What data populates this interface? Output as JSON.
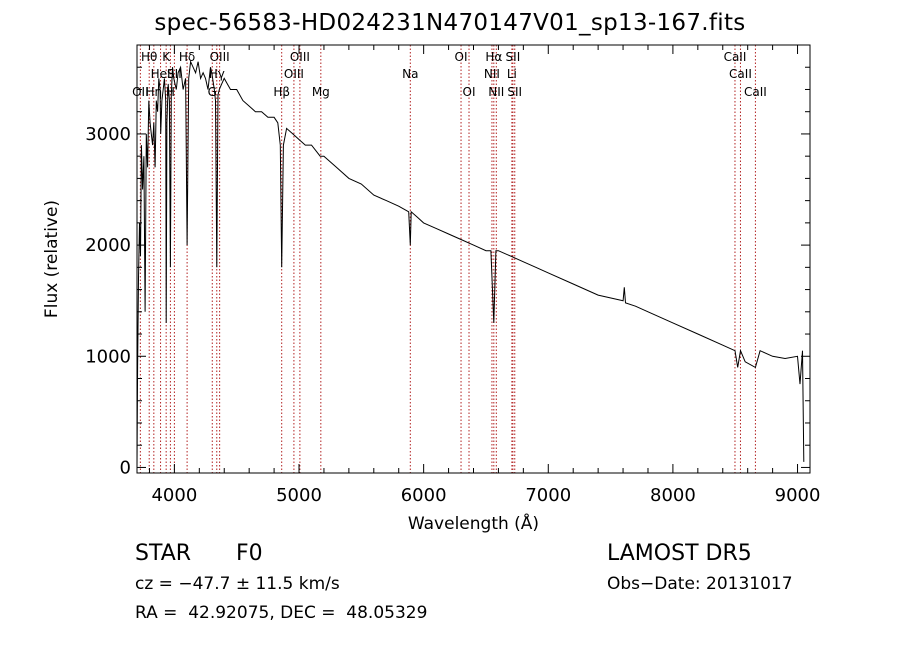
{
  "chart_data": {
    "type": "line",
    "title": "spec-56583-HD024231N470147V01_sp13-167.fits",
    "xlabel": "Wavelength (Å)",
    "ylabel": "Flux (relative)",
    "xlim": [
      3700,
      9100
    ],
    "ylim": [
      -50,
      3800
    ],
    "xticks": [
      4000,
      5000,
      6000,
      7000,
      8000,
      9000
    ],
    "yticks": [
      0,
      1000,
      2000,
      3000
    ],
    "grid": false,
    "line_color": "#000000",
    "marker_line_color": "#b22222",
    "series": [
      {
        "x": [
          3700,
          3705,
          3712,
          3720,
          3728,
          3735,
          3745,
          3755,
          3765,
          3775,
          3785,
          3795,
          3805,
          3815,
          3825,
          3835,
          3845,
          3855,
          3865,
          3875,
          3885,
          3890,
          3900,
          3910,
          3920,
          3930,
          3934,
          3940,
          3950,
          3960,
          3968,
          3975,
          3985,
          3995,
          4005,
          4015,
          4030,
          4050,
          4070,
          4090,
          4102,
          4115,
          4130,
          4150,
          4170,
          4190,
          4210,
          4230,
          4250,
          4270,
          4290,
          4300,
          4320,
          4330,
          4340,
          4350,
          4360,
          4380,
          4400,
          4450,
          4500,
          4550,
          4600,
          4650,
          4700,
          4750,
          4800,
          4830,
          4850,
          4861,
          4875,
          4900,
          4950,
          5000,
          5050,
          5100,
          5170,
          5200,
          5300,
          5400,
          5500,
          5600,
          5700,
          5800,
          5880,
          5893,
          5900,
          5950,
          6000,
          6100,
          6200,
          6300,
          6400,
          6500,
          6540,
          6563,
          6580,
          6600,
          6700,
          6800,
          6900,
          7000,
          7200,
          7400,
          7600,
          7610,
          7620,
          7700,
          7800,
          8000,
          8200,
          8400,
          8498,
          8520,
          8542,
          8580,
          8662,
          8700,
          8800,
          8900,
          9000,
          9020,
          9040,
          9050
        ],
        "values": [
          0,
          900,
          1700,
          2200,
          1900,
          2900,
          2500,
          2800,
          1400,
          3000,
          2700,
          3300,
          3100,
          3000,
          2900,
          3100,
          2700,
          3300,
          3200,
          3500,
          3400,
          3000,
          3300,
          3400,
          3500,
          3300,
          1300,
          3100,
          3450,
          3300,
          1800,
          3350,
          3600,
          3500,
          3450,
          3400,
          3550,
          3600,
          3400,
          3500,
          2000,
          3500,
          3650,
          3600,
          3550,
          3650,
          3500,
          3550,
          3500,
          3400,
          3600,
          3550,
          3400,
          3300,
          1800,
          3350,
          3400,
          3450,
          3500,
          3400,
          3400,
          3300,
          3250,
          3200,
          3200,
          3150,
          3150,
          3100,
          2900,
          1800,
          2900,
          3050,
          3000,
          2950,
          2900,
          2900,
          2800,
          2800,
          2700,
          2600,
          2550,
          2450,
          2400,
          2350,
          2300,
          2000,
          2300,
          2250,
          2200,
          2150,
          2100,
          2050,
          2000,
          1950,
          1950,
          1300,
          1950,
          1950,
          1900,
          1850,
          1800,
          1750,
          1650,
          1550,
          1500,
          1620,
          1480,
          1450,
          1400,
          1300,
          1200,
          1100,
          1050,
          900,
          1050,
          950,
          900,
          1050,
          1000,
          980,
          1000,
          750,
          1050,
          50
        ]
      }
    ],
    "line_markers": [
      {
        "wavelength": 3727,
        "label": "OII",
        "row": 3
      },
      {
        "wavelength": 3798,
        "label": "Hθ",
        "row": 1
      },
      {
        "wavelength": 3835,
        "label": "Hη",
        "row": 3
      },
      {
        "wavelength": 3889,
        "label": "HeI",
        "row": 2
      },
      {
        "wavelength": 3934,
        "label": "K",
        "row": 1
      },
      {
        "wavelength": 3968,
        "label": "H",
        "row": 3
      },
      {
        "wavelength": 4000,
        "label": "SII",
        "row": 2
      },
      {
        "wavelength": 4102,
        "label": "Hδ",
        "row": 1
      },
      {
        "wavelength": 4304,
        "label": "G",
        "row": 3
      },
      {
        "wavelength": 4340,
        "label": "Hγ",
        "row": 2
      },
      {
        "wavelength": 4363,
        "label": "OIII",
        "row": 1
      },
      {
        "wavelength": 4861,
        "label": "Hβ",
        "row": 3
      },
      {
        "wavelength": 4959,
        "label": "OIII",
        "row": 2
      },
      {
        "wavelength": 5007,
        "label": "OIII",
        "row": 1
      },
      {
        "wavelength": 5175,
        "label": "Mg",
        "row": 3
      },
      {
        "wavelength": 5893,
        "label": "Na",
        "row": 2
      },
      {
        "wavelength": 6300,
        "label": "OI",
        "row": 1
      },
      {
        "wavelength": 6364,
        "label": "OI",
        "row": 3
      },
      {
        "wavelength": 6548,
        "label": "NII",
        "row": 2
      },
      {
        "wavelength": 6563,
        "label": "Hα",
        "row": 1
      },
      {
        "wavelength": 6583,
        "label": "NII",
        "row": 3
      },
      {
        "wavelength": 6708,
        "label": "Li",
        "row": 2
      },
      {
        "wavelength": 6716,
        "label": "SII",
        "row": 1
      },
      {
        "wavelength": 6731,
        "label": "SII",
        "row": 3
      },
      {
        "wavelength": 8498,
        "label": "CaII",
        "row": 1
      },
      {
        "wavelength": 8542,
        "label": "CaII",
        "row": 2
      },
      {
        "wavelength": 8662,
        "label": "CaII",
        "row": 3
      }
    ]
  },
  "info": {
    "object_class": "STAR",
    "subclass": "F0",
    "survey": "LAMOST DR5",
    "cz": "cz = −47.7 ± 11.5 km/s",
    "obs_date": "Obs−Date: 20131017",
    "coords": "RA =  42.92075, DEC =  48.05329"
  }
}
